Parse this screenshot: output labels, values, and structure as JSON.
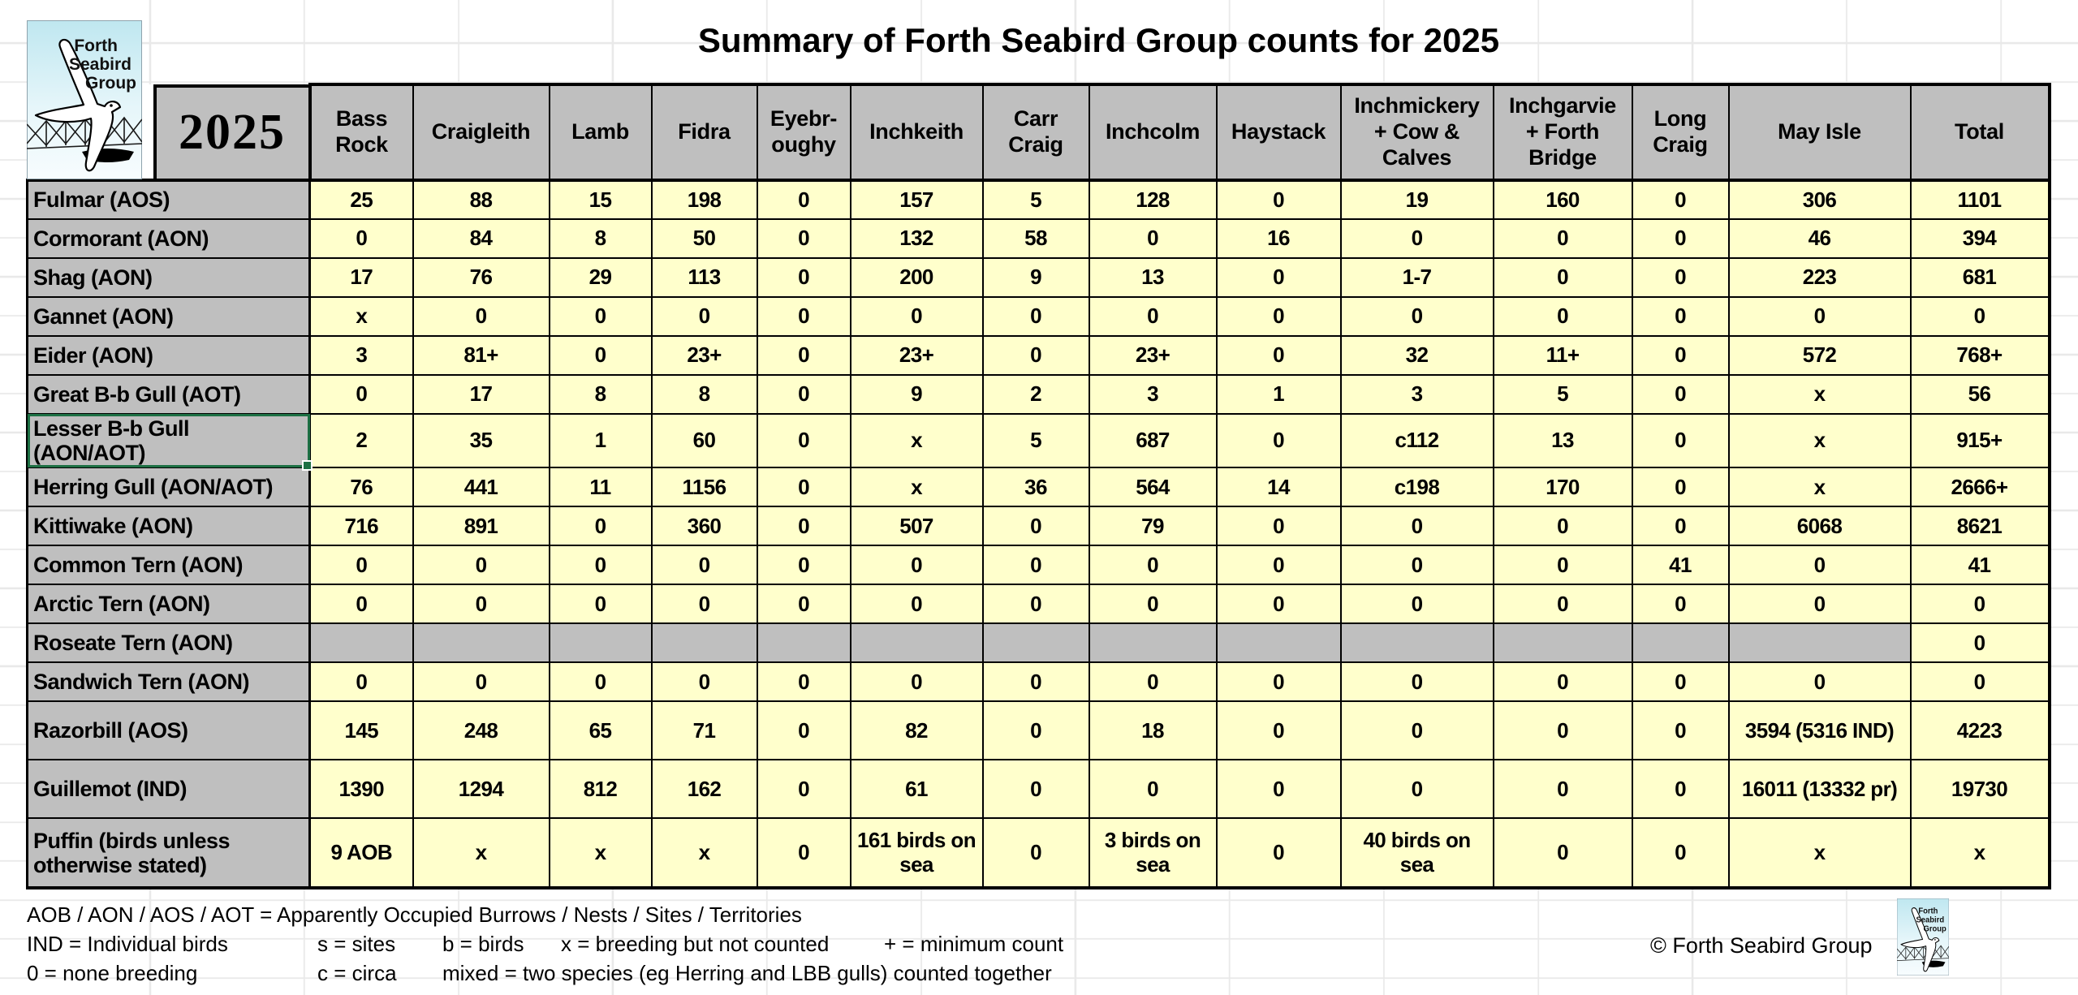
{
  "title": "Summary of Forth Seabird Group counts for 2025",
  "year_label": "2025",
  "logo": {
    "line1": "Forth",
    "line2": "Seabird",
    "line3": "Group"
  },
  "colors": {
    "header_fill": "#bfbfbf",
    "cell_fill": "#ffffcc",
    "blank_fill": "#bfbfbf",
    "selection_green": "#1d7044",
    "border": "#000000"
  },
  "table": {
    "columns": [
      "Bass Rock",
      "Craigleith",
      "Lamb",
      "Fidra",
      "Eyebr-\noughy",
      "Inchkeith",
      "Carr\nCraig",
      "Inchcolm",
      "Haystack",
      "Inchmickery\n+ Cow &\nCalves",
      "Inchgarvie\n+ Forth\nBridge",
      "Long\nCraig",
      "May Isle",
      "Total"
    ],
    "rows": [
      {
        "label": "Fulmar (AOS)",
        "values": [
          "25",
          "88",
          "15",
          "198",
          "0",
          "157",
          "5",
          "128",
          "0",
          "19",
          "160",
          "0",
          "306",
          "1101"
        ]
      },
      {
        "label": "Cormorant (AON)",
        "values": [
          "0",
          "84",
          "8",
          "50",
          "0",
          "132",
          "58",
          "0",
          "16",
          "0",
          "0",
          "0",
          "46",
          "394"
        ]
      },
      {
        "label": "Shag (AON)",
        "values": [
          "17",
          "76",
          "29",
          "113",
          "0",
          "200",
          "9",
          "13",
          "0",
          "1-7",
          "0",
          "0",
          "223",
          "681"
        ]
      },
      {
        "label": "Gannet (AON)",
        "values": [
          "x",
          "0",
          "0",
          "0",
          "0",
          "0",
          "0",
          "0",
          "0",
          "0",
          "0",
          "0",
          "0",
          "0"
        ]
      },
      {
        "label": "Eider (AON)",
        "values": [
          "3",
          "81+",
          "0",
          "23+",
          "0",
          "23+",
          "0",
          "23+",
          "0",
          "32",
          "11+",
          "0",
          "572",
          "768+"
        ]
      },
      {
        "label": "Great B-b Gull (AOT)",
        "values": [
          "0",
          "17",
          "8",
          "8",
          "0",
          "9",
          "2",
          "3",
          "1",
          "3",
          "5",
          "0",
          "x",
          "56"
        ]
      },
      {
        "label": "Lesser B-b Gull (AON/AOT)",
        "selected": true,
        "values": [
          "2",
          "35",
          "1",
          "60",
          "0",
          "x",
          "5",
          "687",
          "0",
          "c112",
          "13",
          "0",
          "x",
          "915+"
        ]
      },
      {
        "label": "Herring Gull (AON/AOT)",
        "values": [
          "76",
          "441",
          "11",
          "1156",
          "0",
          "x",
          "36",
          "564",
          "14",
          "c198",
          "170",
          "0",
          "x",
          "2666+"
        ]
      },
      {
        "label": "Kittiwake (AON)",
        "values": [
          "716",
          "891",
          "0",
          "360",
          "0",
          "507",
          "0",
          "79",
          "0",
          "0",
          "0",
          "0",
          "6068",
          "8621"
        ]
      },
      {
        "label": "Common Tern (AON)",
        "values": [
          "0",
          "0",
          "0",
          "0",
          "0",
          "0",
          "0",
          "0",
          "0",
          "0",
          "0",
          "41",
          "0",
          "41"
        ]
      },
      {
        "label": "Arctic Tern (AON)",
        "values": [
          "0",
          "0",
          "0",
          "0",
          "0",
          "0",
          "0",
          "0",
          "0",
          "0",
          "0",
          "0",
          "0",
          "0"
        ]
      },
      {
        "label": "Roseate Tern (AON)",
        "values": [
          "",
          "",
          "",
          "",
          "",
          "",
          "",
          "",
          "",
          "",
          "",
          "",
          "",
          "0"
        ]
      },
      {
        "label": "Sandwich Tern (AON)",
        "values": [
          "0",
          "0",
          "0",
          "0",
          "0",
          "0",
          "0",
          "0",
          "0",
          "0",
          "0",
          "0",
          "0",
          "0"
        ]
      },
      {
        "label": "Razorbill (AOS)",
        "values": [
          "145",
          "248",
          "65",
          "71",
          "0",
          "82",
          "0",
          "18",
          "0",
          "0",
          "0",
          "0",
          "3594 (5316 IND)",
          "4223"
        ]
      },
      {
        "label": "Guillemot (IND)",
        "values": [
          "1390",
          "1294",
          "812",
          "162",
          "0",
          "61",
          "0",
          "0",
          "0",
          "0",
          "0",
          "0",
          "16011 (13332 pr)",
          "19730"
        ]
      },
      {
        "label": "Puffin (birds unless otherwise stated)",
        "values": [
          "9 AOB",
          "x",
          "x",
          "x",
          "0",
          "161 birds on sea",
          "0",
          "3 birds on sea",
          "0",
          "40 birds on sea",
          "0",
          "0",
          "x",
          "x"
        ]
      }
    ]
  },
  "footer": {
    "legend1": "AOB / AON / AOS / AOT = Apparently Occupied Burrows / Nests / Sites / Territories",
    "legend2": [
      "IND = Individual birds",
      "s = sites",
      "b = birds",
      "x  = breeding but not counted",
      "+ = minimum count"
    ],
    "legend3": [
      "0 = none breeding",
      "c = circa",
      "mixed = two species (eg Herring and LBB gulls) counted together"
    ],
    "copyright": "© Forth Seabird Group"
  }
}
